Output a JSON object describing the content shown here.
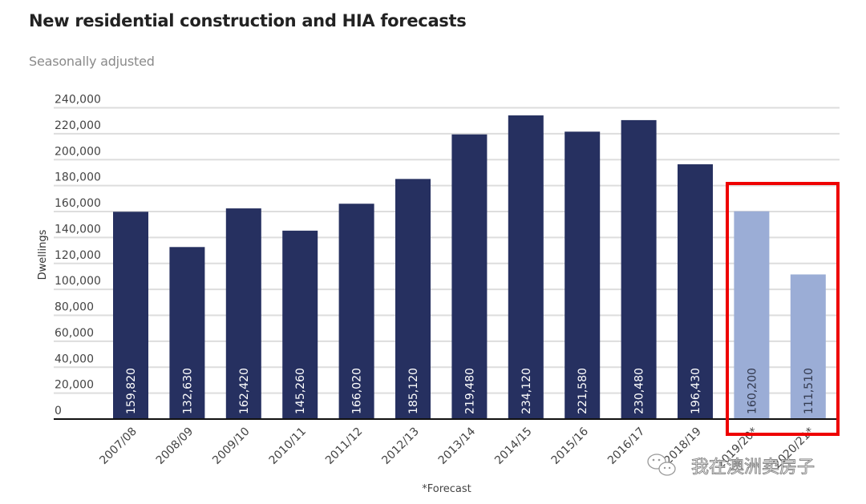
{
  "chart_data": {
    "type": "bar",
    "title": "New residential construction and HIA forecasts",
    "subtitle": "Seasonally adjusted",
    "xlabel": "",
    "ylabel": "Dwellings",
    "ylim": [
      0,
      240000
    ],
    "yticks": [
      0,
      20000,
      40000,
      60000,
      80000,
      100000,
      120000,
      140000,
      160000,
      180000,
      200000,
      220000,
      240000
    ],
    "ytick_labels": [
      "0",
      "20,000",
      "40,000",
      "60,000",
      "80,000",
      "100,000",
      "120,000",
      "140,000",
      "160,000",
      "180,000",
      "200,000",
      "220,000",
      "240,000"
    ],
    "grid": true,
    "categories": [
      "2007/08",
      "2008/09",
      "2009/10",
      "2010/11",
      "2011/12",
      "2012/13",
      "2013/14",
      "2014/15",
      "2015/16",
      "2016/17",
      "2018/19",
      "2019/20*",
      "2020/21*"
    ],
    "values": [
      159820,
      132630,
      162420,
      145260,
      166020,
      185120,
      219480,
      234120,
      221580,
      230480,
      196430,
      160200,
      111510
    ],
    "data_labels": [
      "159,820",
      "132,630",
      "162,420",
      "145,260",
      "166,020",
      "185,120",
      "219,480",
      "234,120",
      "221,580",
      "230,480",
      "196,430",
      "160,200",
      "111,510"
    ],
    "forecast": [
      false,
      false,
      false,
      false,
      false,
      false,
      false,
      false,
      false,
      false,
      false,
      true,
      true
    ],
    "colors": {
      "actual": "#263060",
      "forecast": "#9badd6",
      "actual_label": "#ffffff",
      "forecast_label": "#333a4f",
      "highlight_box": "#ee0000"
    },
    "footnote": "*Forecast",
    "annotation": "red box highlighting forecast bars 2019/20* and 2020/21*"
  },
  "watermark": {
    "text": "我在澳洲卖房子",
    "icon": "wechat-icon"
  }
}
